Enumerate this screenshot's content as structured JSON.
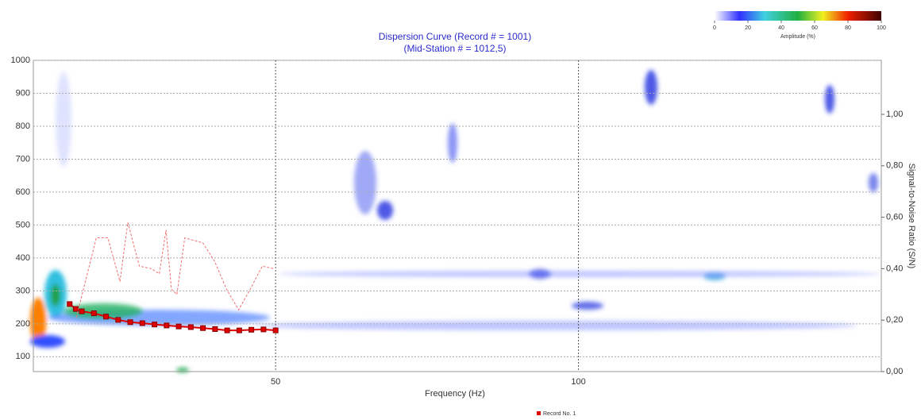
{
  "chart_data": {
    "type": "line",
    "title": [
      "Dispersion Curve (Record # = 1001)",
      "(Mid-Station # = 1012,5)"
    ],
    "x_label": "Frequency (Hz)",
    "y2_label": "Signal-to-Noise Ratio (S/N)",
    "xlim": [
      10,
      150
    ],
    "xticks": [
      50,
      100
    ],
    "ylim": [
      55,
      1000
    ],
    "yticks": [
      100,
      200,
      300,
      400,
      500,
      600,
      700,
      800,
      900,
      1000
    ],
    "y2lim": [
      0,
      1.21
    ],
    "y2ticks": [
      {
        "value": 0,
        "label": "0,00"
      },
      {
        "value": 0.2,
        "label": "0,20"
      },
      {
        "value": 0.4,
        "label": "0,40"
      },
      {
        "value": 0.6,
        "label": "0,60"
      },
      {
        "value": 0.8,
        "label": "0,80"
      },
      {
        "value": 1.0,
        "label": "1,00"
      }
    ],
    "grid": true,
    "legend": "bottom",
    "colorbar": {
      "label": "Amplitude (%)",
      "lim": [
        0,
        100
      ],
      "ticks": [
        0,
        20,
        40,
        60,
        80,
        100
      ]
    },
    "series": [
      {
        "name": "Record No. 1",
        "color": "#e00000",
        "marker": "square",
        "x": [
          16,
          17,
          18,
          20,
          22,
          24,
          26,
          28,
          30,
          32,
          34,
          36,
          38,
          40,
          42,
          44,
          46,
          48,
          50
        ],
        "values": [
          260,
          245,
          238,
          232,
          222,
          212,
          205,
          202,
          198,
          195,
          192,
          190,
          187,
          184,
          180,
          180,
          182,
          183,
          180
        ]
      },
      {
        "color": "#f07070",
        "axis": "y2",
        "line_style": "dashed",
        "x": [
          17.1,
          20.4,
          22.3,
          24.3,
          25.6,
          27.5,
          29.5,
          30.8,
          31.9,
          32.8,
          33.7,
          35.0,
          38.0,
          39.9,
          41.9,
          43.9,
          45.8,
          47.8,
          49.7
        ],
        "values": [
          0.21,
          0.52,
          0.52,
          0.35,
          0.58,
          0.41,
          0.4,
          0.38,
          0.55,
          0.32,
          0.3,
          0.52,
          0.5,
          0.43,
          0.32,
          0.24,
          0.32,
          0.41,
          0.4
        ]
      }
    ]
  }
}
